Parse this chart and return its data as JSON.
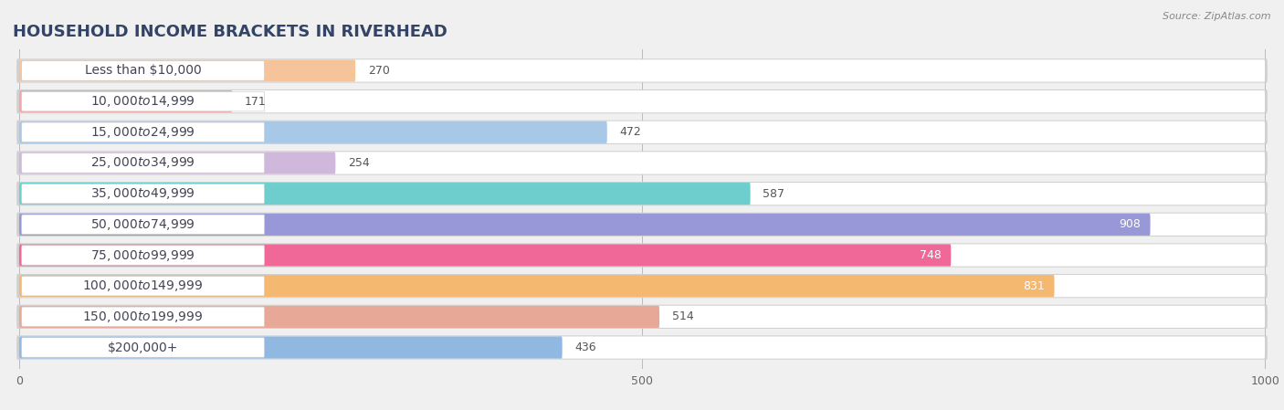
{
  "title": "HOUSEHOLD INCOME BRACKETS IN RIVERHEAD",
  "source": "Source: ZipAtlas.com",
  "categories": [
    "Less than $10,000",
    "$10,000 to $14,999",
    "$15,000 to $24,999",
    "$25,000 to $34,999",
    "$35,000 to $49,999",
    "$50,000 to $74,999",
    "$75,000 to $99,999",
    "$100,000 to $149,999",
    "$150,000 to $199,999",
    "$200,000+"
  ],
  "values": [
    270,
    171,
    472,
    254,
    587,
    908,
    748,
    831,
    514,
    436
  ],
  "bar_colors": [
    "#f5c49a",
    "#f2a8a8",
    "#a8c8e8",
    "#d0b8dc",
    "#6ecece",
    "#9898d8",
    "#f06898",
    "#f5b870",
    "#e8a898",
    "#90b8e0"
  ],
  "xlim": [
    0,
    1000
  ],
  "xticks": [
    0,
    500,
    1000
  ],
  "background_color": "#f0f0f0",
  "bar_bg_color": "#ffffff",
  "bar_border_color": "#cccccc",
  "label_bg_color": "#ffffff",
  "title_fontsize": 13,
  "label_fontsize": 10,
  "value_fontsize": 9,
  "high_value_threshold": 700
}
